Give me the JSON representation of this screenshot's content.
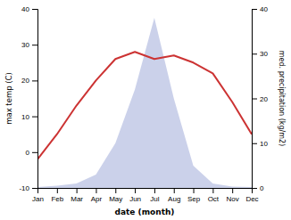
{
  "chart_data": {
    "type": "line",
    "xlabel": "date (month)",
    "ylabel": "max temp (C)",
    "y2label": "med. precipitation (kg/m2)",
    "categories": [
      "Jan",
      "Feb",
      "Mar",
      "Apr",
      "May",
      "Jun",
      "Jul",
      "Aug",
      "Sep",
      "Oct",
      "Nov",
      "Dec"
    ],
    "series": [
      {
        "type": "area",
        "axis": "y2",
        "color": "#c5cce8",
        "values": [
          0.2,
          0.5,
          1,
          3,
          10,
          22,
          38,
          20,
          5,
          1,
          0.3,
          0.2
        ]
      },
      {
        "type": "line",
        "color": "#cc3333",
        "values": [
          -2,
          5,
          13,
          20,
          26,
          28,
          26,
          27,
          25,
          22,
          14,
          5
        ]
      }
    ],
    "ylim": [
      -10,
      40
    ],
    "yticks": [
      -10,
      0,
      10,
      20,
      30,
      40
    ],
    "y2lim": [
      0,
      40
    ],
    "y2ticks": [
      0,
      10,
      20,
      30,
      40
    ],
    "grid": false
  }
}
